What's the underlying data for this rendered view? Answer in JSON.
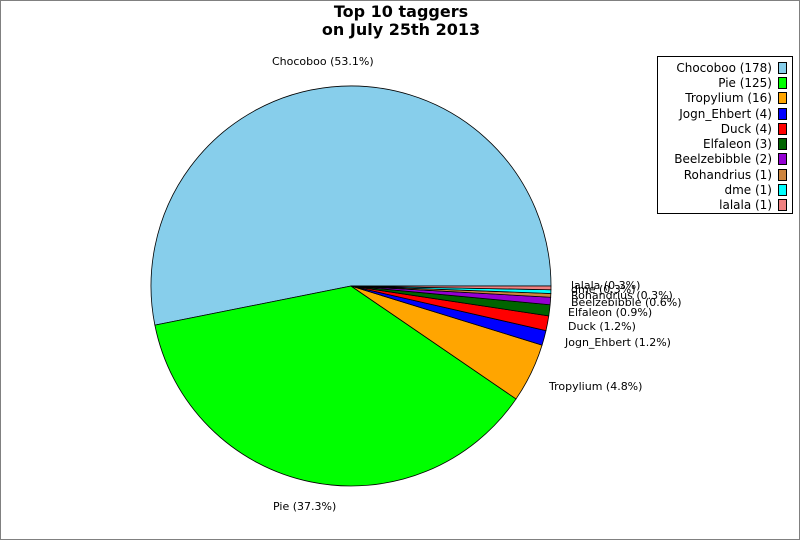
{
  "chart_data": {
    "type": "pie",
    "title_lines": [
      "Top 10 taggers",
      "on July 25th 2013"
    ],
    "legend_position": "top-right",
    "slices": [
      {
        "name": "Chocoboo",
        "value": 178,
        "percent_label": "53.1%",
        "color": "#87CEEB"
      },
      {
        "name": "Pie",
        "value": 125,
        "percent_label": "37.3%",
        "color": "#00FF00"
      },
      {
        "name": "Tropylium",
        "value": 16,
        "percent_label": "4.8%",
        "color": "#FFA500"
      },
      {
        "name": "Jogn_Ehbert",
        "value": 4,
        "percent_label": "1.2%",
        "color": "#0000FF"
      },
      {
        "name": "Duck",
        "value": 4,
        "percent_label": "1.2%",
        "color": "#FF0000"
      },
      {
        "name": "Elfaleon",
        "value": 3,
        "percent_label": "0.9%",
        "color": "#006400"
      },
      {
        "name": "Beelzebibble",
        "value": 2,
        "percent_label": "0.6%",
        "color": "#9400D3"
      },
      {
        "name": "Rohandrius",
        "value": 1,
        "percent_label": "0.3%",
        "color": "#CD853F"
      },
      {
        "name": "dme",
        "value": 1,
        "percent_label": "0.3%",
        "color": "#00FFFF"
      },
      {
        "name": "lalala",
        "value": 1,
        "percent_label": "0.3%",
        "color": "#F08080"
      }
    ]
  }
}
